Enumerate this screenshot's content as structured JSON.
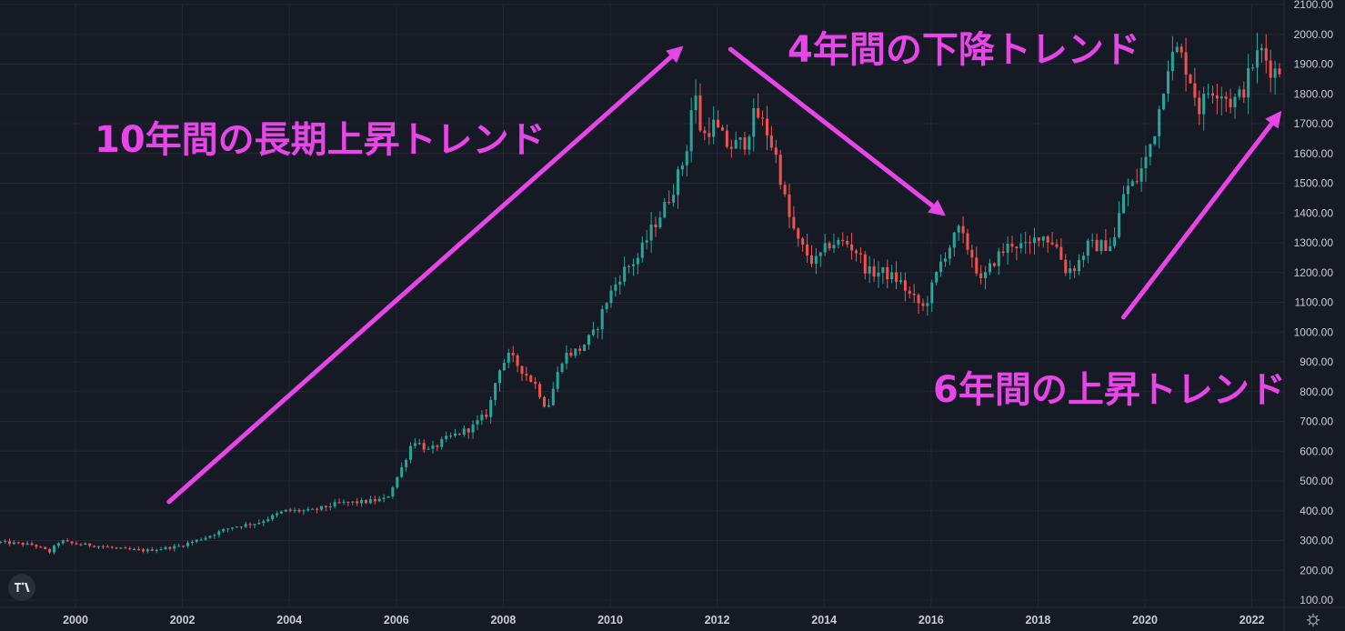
{
  "chart_data": {
    "type": "candlestick",
    "title": "",
    "y_axis": {
      "position": "right",
      "range": [
        100,
        2100
      ],
      "tick_values": [
        100,
        200,
        300,
        400,
        500,
        600,
        700,
        800,
        900,
        1000,
        1100,
        1200,
        1300,
        1400,
        1500,
        1600,
        1700,
        1800,
        1900,
        2000,
        2100
      ],
      "tick_labels": [
        "100.00",
        "200.00",
        "300.00",
        "400.00",
        "500.00",
        "600.00",
        "700.00",
        "800.00",
        "900.00",
        "1000.00",
        "1100.00",
        "1200.00",
        "1300.00",
        "1400.00",
        "1500.00",
        "1600.00",
        "1700.00",
        "1800.00",
        "1900.00",
        "2000.00",
        "2100.00"
      ]
    },
    "x_axis": {
      "range": [
        1998.6,
        2022.55
      ],
      "tick_values": [
        2000,
        2002,
        2004,
        2006,
        2008,
        2010,
        2012,
        2014,
        2016,
        2018,
        2020,
        2022
      ],
      "tick_labels": [
        "2000",
        "2002",
        "2004",
        "2006",
        "2008",
        "2010",
        "2012",
        "2014",
        "2016",
        "2018",
        "2020",
        "2022"
      ]
    },
    "grid": true,
    "up_color": "#26a69a",
    "down_color": "#ef5350",
    "price_path": [
      [
        1998.6,
        295
      ],
      [
        1999.0,
        290
      ],
      [
        1999.3,
        285
      ],
      [
        1999.6,
        262
      ],
      [
        1999.8,
        300
      ],
      [
        2000.0,
        290
      ],
      [
        2000.5,
        282
      ],
      [
        2001.0,
        270
      ],
      [
        2001.4,
        266
      ],
      [
        2001.8,
        276
      ],
      [
        2002.0,
        280
      ],
      [
        2002.5,
        310
      ],
      [
        2003.0,
        345
      ],
      [
        2003.5,
        360
      ],
      [
        2004.0,
        400
      ],
      [
        2004.5,
        400
      ],
      [
        2005.0,
        425
      ],
      [
        2005.5,
        430
      ],
      [
        2005.9,
        440
      ],
      [
        2006.2,
        550
      ],
      [
        2006.4,
        640
      ],
      [
        2006.7,
        600
      ],
      [
        2007.0,
        640
      ],
      [
        2007.5,
        680
      ],
      [
        2007.8,
        730
      ],
      [
        2008.0,
        880
      ],
      [
        2008.2,
        920
      ],
      [
        2008.4,
        880
      ],
      [
        2008.7,
        820
      ],
      [
        2008.9,
        740
      ],
      [
        2009.2,
        920
      ],
      [
        2009.5,
        940
      ],
      [
        2009.8,
        1000
      ],
      [
        2010.0,
        1100
      ],
      [
        2010.3,
        1200
      ],
      [
        2010.6,
        1250
      ],
      [
        2010.9,
        1360
      ],
      [
        2011.1,
        1420
      ],
      [
        2011.3,
        1500
      ],
      [
        2011.5,
        1600
      ],
      [
        2011.65,
        1820
      ],
      [
        2011.8,
        1650
      ],
      [
        2012.0,
        1700
      ],
      [
        2012.3,
        1620
      ],
      [
        2012.6,
        1640
      ],
      [
        2012.8,
        1740
      ],
      [
        2013.0,
        1680
      ],
      [
        2013.2,
        1580
      ],
      [
        2013.4,
        1400
      ],
      [
        2013.6,
        1300
      ],
      [
        2013.9,
        1230
      ],
      [
        2014.2,
        1300
      ],
      [
        2014.5,
        1300
      ],
      [
        2014.7,
        1270
      ],
      [
        2014.9,
        1200
      ],
      [
        2015.2,
        1200
      ],
      [
        2015.5,
        1170
      ],
      [
        2015.7,
        1120
      ],
      [
        2015.95,
        1080
      ],
      [
        2016.1,
        1150
      ],
      [
        2016.3,
        1250
      ],
      [
        2016.6,
        1340
      ],
      [
        2016.9,
        1240
      ],
      [
        2017.0,
        1160
      ],
      [
        2017.3,
        1250
      ],
      [
        2017.6,
        1300
      ],
      [
        2017.9,
        1280
      ],
      [
        2018.1,
        1330
      ],
      [
        2018.4,
        1300
      ],
      [
        2018.6,
        1210
      ],
      [
        2018.8,
        1220
      ],
      [
        2019.0,
        1290
      ],
      [
        2019.3,
        1290
      ],
      [
        2019.5,
        1300
      ],
      [
        2019.7,
        1480
      ],
      [
        2019.9,
        1500
      ],
      [
        2020.1,
        1580
      ],
      [
        2020.3,
        1700
      ],
      [
        2020.5,
        1900
      ],
      [
        2020.7,
        1950
      ],
      [
        2020.9,
        1870
      ],
      [
        2021.1,
        1750
      ],
      [
        2021.3,
        1820
      ],
      [
        2021.5,
        1810
      ],
      [
        2021.7,
        1770
      ],
      [
        2021.9,
        1800
      ],
      [
        2022.1,
        1900
      ],
      [
        2022.25,
        1950
      ],
      [
        2022.45,
        1880
      ]
    ],
    "annotations": [
      {
        "id": "trend-up-10y",
        "text": "10年間の長期上昇トレンド",
        "arrow_from": [
          2001.75,
          430
        ],
        "arrow_to": [
          2011.3,
          1950
        ]
      },
      {
        "id": "trend-down-4y",
        "text": "4年間の下降トレンド",
        "arrow_from": [
          2012.25,
          1950
        ],
        "arrow_to": [
          2016.2,
          1400
        ]
      },
      {
        "id": "trend-up-6y",
        "text": "6年間の上昇トレンド",
        "arrow_from": [
          2019.6,
          1050
        ],
        "arrow_to": [
          2022.5,
          1730
        ]
      }
    ]
  },
  "colors": {
    "background": "#161a25",
    "grid": "#232733",
    "axis_text": "#c9ccd4",
    "annotation": "#e845e8"
  },
  "logo": {
    "text": "TV",
    "icon": "tradingview-logo-icon"
  },
  "settings": {
    "icon": "gear-icon"
  }
}
